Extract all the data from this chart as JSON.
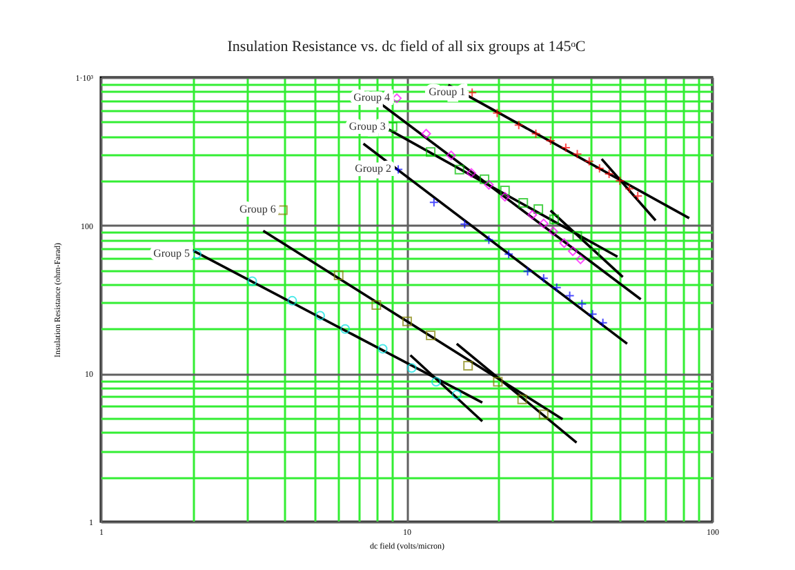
{
  "chart_data": {
    "type": "scatter",
    "title": "Insulation Resistance vs. dc field of all six groups at 145ᵒC",
    "xlabel": "dc field (volts/micron)",
    "ylabel": "Insulation Resistance (ohm-Farad)",
    "log": "xy",
    "grid": true,
    "xlim": [
      1,
      100
    ],
    "ylim": [
      1,
      1000
    ],
    "xticks": [
      1,
      {
        "value": 2,
        "label": null
      },
      {
        "value": 3,
        "label": null
      },
      {
        "value": 4,
        "label": null
      },
      {
        "value": 5,
        "label": null
      },
      {
        "value": 6,
        "label": null
      },
      {
        "value": 7,
        "label": null
      },
      {
        "value": 8,
        "label": null
      },
      {
        "value": 9,
        "label": null
      },
      10,
      {
        "value": 20,
        "label": null
      },
      {
        "value": 30,
        "label": null
      },
      {
        "value": 40,
        "label": null
      },
      {
        "value": 50,
        "label": null
      },
      {
        "value": 60,
        "label": null
      },
      {
        "value": 70,
        "label": null
      },
      {
        "value": 80,
        "label": null
      },
      {
        "value": 90,
        "label": null
      },
      100
    ],
    "yticks": [
      1,
      {
        "value": 2,
        "label": null
      },
      {
        "value": 3,
        "label": null
      },
      {
        "value": 4,
        "label": null
      },
      {
        "value": 5,
        "label": null
      },
      {
        "value": 6,
        "label": null
      },
      {
        "value": 7,
        "label": null
      },
      {
        "value": 8,
        "label": null
      },
      {
        "value": 9,
        "label": null
      },
      10,
      {
        "value": 20,
        "label": null
      },
      {
        "value": 30,
        "label": null
      },
      {
        "value": 40,
        "label": null
      },
      {
        "value": 50,
        "label": null
      },
      {
        "value": 60,
        "label": null
      },
      {
        "value": 70,
        "label": null
      },
      {
        "value": 80,
        "label": null
      },
      {
        "value": 90,
        "label": null
      },
      100,
      {
        "value": 200,
        "label": null
      },
      {
        "value": 300,
        "label": null
      },
      {
        "value": 400,
        "label": null
      },
      {
        "value": 500,
        "label": null
      },
      {
        "value": 600,
        "label": null
      },
      {
        "value": 700,
        "label": null
      },
      {
        "value": 800,
        "label": null
      },
      {
        "value": 900,
        "label": null
      },
      {
        "value": 1000,
        "label": "1·10³"
      }
    ],
    "series": [
      {
        "name": "Group 1",
        "marker": "cross",
        "color": "#ff0000",
        "x": [
          16.4,
          19.8,
          23.3,
          26.5,
          29.6,
          33.2,
          36.2,
          39.6,
          42.8,
          46.0,
          49.9,
          53.6,
          57.1
        ],
        "values": [
          787,
          574,
          476,
          416,
          373,
          335,
          303,
          271,
          243,
          223,
          200,
          177,
          158
        ]
      },
      {
        "name": "Group 2",
        "marker": "cross",
        "color": "#0000ff",
        "x": [
          9.4,
          12.3,
          15.5,
          18.6,
          21.6,
          24.9,
          28.1,
          31.0,
          34.2,
          37.5,
          40.6,
          43.9
        ],
        "values": [
          239,
          143,
          102,
          80,
          64,
          49,
          44,
          38,
          33.5,
          29.5,
          25.2,
          22
        ]
      },
      {
        "name": "Group 3",
        "marker": "square",
        "color": "#00c000",
        "x": [
          9.0,
          12.0,
          14.9,
          18.0,
          21.0,
          24.1,
          27.0,
          30.4,
          36.2,
          41.3
        ],
        "values": [
          463,
          313,
          238,
          205,
          172,
          142,
          129,
          110,
          85,
          65
        ]
      },
      {
        "name": "Group 4",
        "marker": "diamond",
        "color": "#ff00ff",
        "x": [
          9.3,
          11.6,
          14.0,
          16.3,
          18.6,
          21.0,
          25.8,
          28.1,
          30.2,
          32.8,
          35.0,
          37.1
        ],
        "values": [
          722,
          416,
          297,
          226,
          188,
          156,
          118,
          103,
          91,
          76,
          67,
          59
        ]
      },
      {
        "name": "Group 5",
        "marker": "circle",
        "color": "#00e0e0",
        "x": [
          2.06,
          3.13,
          4.23,
          5.22,
          6.3,
          8.36,
          10.4,
          12.5,
          14.6
        ],
        "values": [
          64,
          42,
          31,
          24.6,
          20,
          14.7,
          10.9,
          8.8,
          7.2
        ]
      },
      {
        "name": "Group 6",
        "marker": "square",
        "color": "#808000",
        "x": [
          3.94,
          6.0,
          7.97,
          10.05,
          12.0,
          15.9,
          19.9,
          23.9,
          28.1
        ],
        "values": [
          127,
          46,
          29,
          22.5,
          18.1,
          11.3,
          8.8,
          6.7,
          5.3
        ]
      },
      {
        "type": "line",
        "marker": "none",
        "color": "#000000",
        "x": [
          13.7,
          84.1
        ],
        "values": [
          887,
          112
        ]
      },
      {
        "type": "line",
        "marker": "none",
        "color": "#000000",
        "x": [
          43.5,
          65.3
        ],
        "values": [
          281,
          108
        ]
      },
      {
        "type": "line",
        "marker": "none",
        "color": "#000000",
        "x": [
          8.02,
          58.4
        ],
        "values": [
          691,
          31.7
        ]
      },
      {
        "type": "line",
        "marker": "none",
        "color": "#000000",
        "x": [
          8.02,
          49.0
        ],
        "values": [
          491,
          61.5
        ]
      },
      {
        "type": "line",
        "marker": "none",
        "color": "#000000",
        "x": [
          29.6,
          51.0
        ],
        "values": [
          126,
          44.9
        ]
      },
      {
        "type": "line",
        "marker": "none",
        "color": "#000000",
        "x": [
          7.23,
          52.7
        ],
        "values": [
          356,
          15.9
        ]
      },
      {
        "type": "line",
        "marker": "none",
        "color": "#000000",
        "x": [
          3.4,
          32.4
        ],
        "values": [
          92,
          4.92
        ]
      },
      {
        "type": "line",
        "marker": "none",
        "color": "#000000",
        "x": [
          14.6,
          36.0
        ],
        "values": [
          15.9,
          3.42
        ]
      },
      {
        "type": "line",
        "marker": "none",
        "color": "#000000",
        "x": [
          1.94,
          17.7
        ],
        "values": [
          70,
          6.37
        ]
      },
      {
        "type": "line",
        "marker": "none",
        "color": "#000000",
        "x": [
          10.3,
          17.7
        ],
        "values": [
          13.3,
          4.76
        ]
      }
    ]
  }
}
